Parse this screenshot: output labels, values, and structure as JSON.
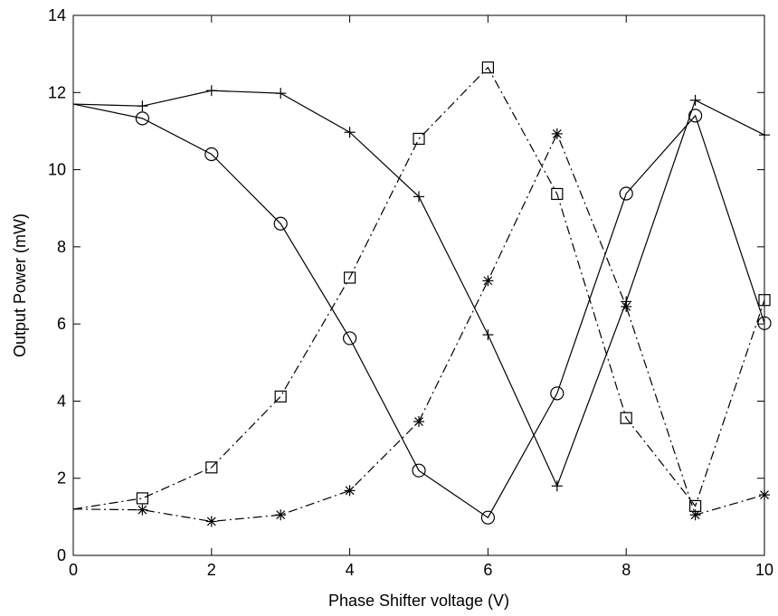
{
  "chart_data": {
    "type": "line",
    "title": "",
    "xlabel": "Phase Shifter voltage (V)",
    "ylabel": "Output Power (mW)",
    "xlim": [
      0,
      10
    ],
    "ylim": [
      0,
      14
    ],
    "xticks": [
      0,
      2,
      4,
      6,
      8,
      10
    ],
    "yticks": [
      0,
      2,
      4,
      6,
      8,
      10,
      12,
      14
    ],
    "grid": false,
    "x": [
      0,
      1,
      2,
      3,
      4,
      5,
      6,
      7,
      8,
      9,
      10
    ],
    "series": [
      {
        "marker": "plus",
        "line_style": "solid",
        "values": [
          11.7,
          11.65,
          12.05,
          11.98,
          10.97,
          9.3,
          5.72,
          1.8,
          6.58,
          11.8,
          10.9
        ]
      },
      {
        "marker": "circle",
        "line_style": "solid",
        "values": [
          11.7,
          11.33,
          10.4,
          8.6,
          5.63,
          2.2,
          0.98,
          4.2,
          9.38,
          11.4,
          6.02
        ]
      },
      {
        "marker": "square",
        "line_style": "dashdot",
        "values": [
          1.2,
          1.48,
          2.28,
          4.12,
          7.2,
          10.8,
          12.65,
          9.37,
          3.56,
          1.28,
          6.62
        ]
      },
      {
        "marker": "asterisk",
        "line_style": "dashdot",
        "values": [
          1.2,
          1.18,
          0.88,
          1.05,
          1.68,
          3.47,
          7.12,
          10.93,
          6.45,
          1.05,
          1.57
        ]
      }
    ]
  }
}
